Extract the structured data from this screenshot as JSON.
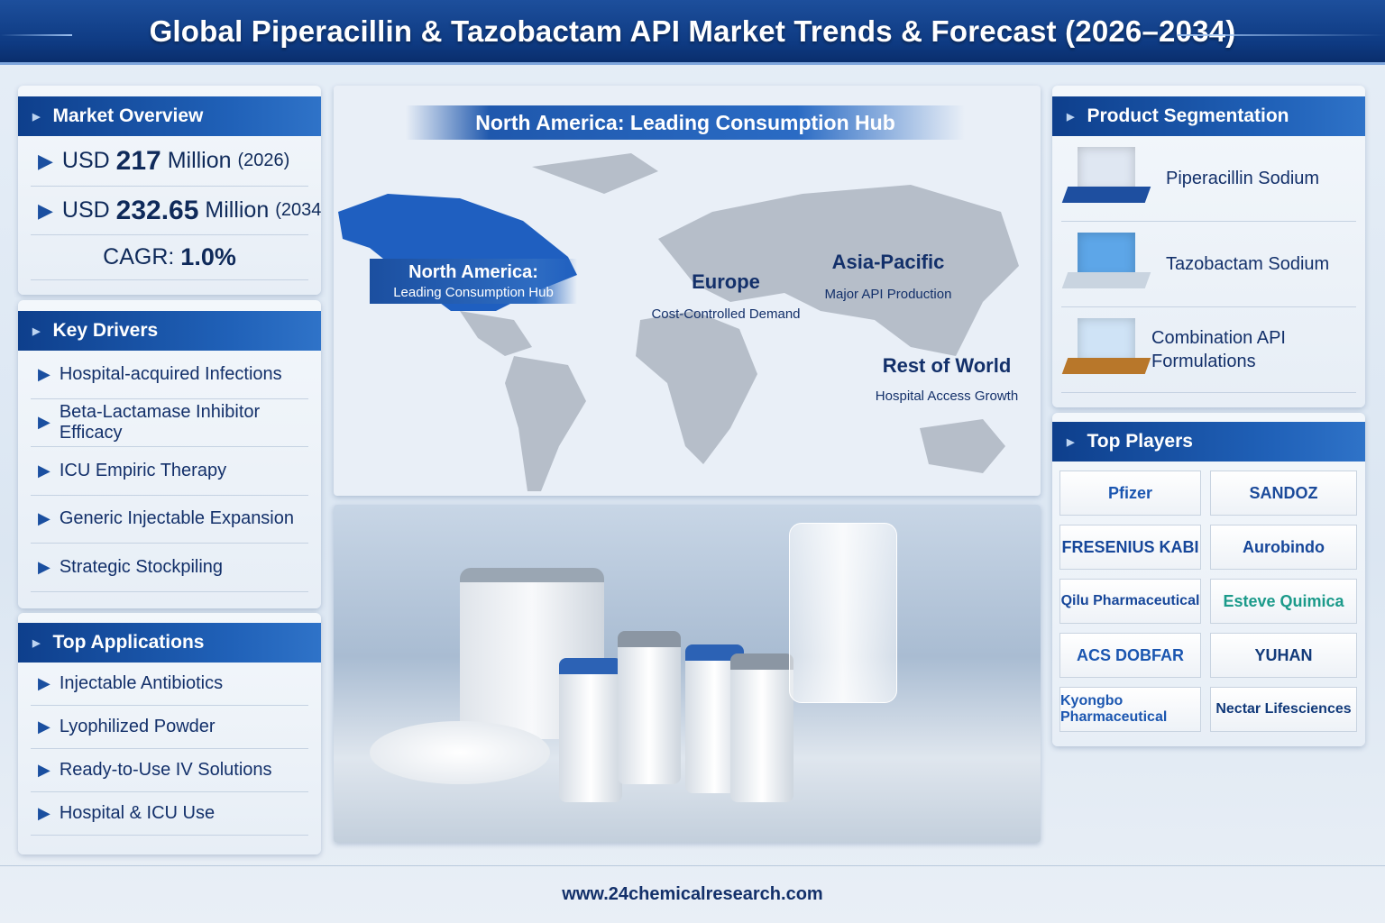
{
  "title": "Global Piperacillin & Tazobactam API Market Trends & Forecast (2026–2034)",
  "market_overview": {
    "heading": "Market Overview",
    "v1_prefix": "USD",
    "v1_value": "217",
    "v1_unit": "Million",
    "v1_year": "(2026)",
    "v2_prefix": "USD",
    "v2_value": "232.65",
    "v2_unit": "Million",
    "v2_year": "(2034)",
    "cagr_label": "CAGR:",
    "cagr_value": "1.0%"
  },
  "key_drivers": {
    "heading": "Key Drivers",
    "items": [
      "Hospital-acquired Infections",
      "Beta-Lactamase Inhibitor Efficacy",
      "ICU Empiric Therapy",
      "Generic Injectable Expansion",
      "Strategic Stockpiling"
    ]
  },
  "top_applications": {
    "heading": "Top Applications",
    "items": [
      "Injectable Antibiotics",
      "Lyophilized Powder",
      "Ready-to-Use IV Solutions",
      "Hospital & ICU Use"
    ]
  },
  "map": {
    "banner": "North America: Leading Consumption Hub",
    "regions": [
      {
        "name": "North America:",
        "sub": "Leading Consumption Hub"
      },
      {
        "name": "Europe",
        "sub": "Cost-Controlled Demand"
      },
      {
        "name": "Asia-Pacific",
        "sub": "Major API Production"
      },
      {
        "name": "Rest of World",
        "sub": "Hospital Access Growth"
      }
    ],
    "highlight_color": "#1f5fc0"
  },
  "product_segmentation": {
    "heading": "Product Segmentation",
    "items": [
      "Piperacillin Sodium",
      "Tazobactam Sodium",
      "Combination API Formulations"
    ]
  },
  "top_players": {
    "heading": "Top Players",
    "items": [
      "Pfizer",
      "SANDOZ",
      "FRESENIUS KABI",
      "Aurobindo",
      "Qilu Pharmaceutical",
      "Esteve Quimica",
      "ACS DOBFAR",
      "YUHAN",
      "Kyongbo Pharmaceutical",
      "Nectar Lifesciences"
    ]
  },
  "footer": "www.24chemicalresearch.com"
}
